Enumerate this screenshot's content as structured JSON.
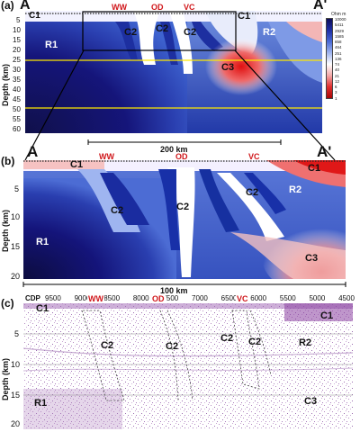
{
  "panel_a": {
    "letter": "(a)",
    "end_left": "A",
    "end_right": "A'",
    "markers": [
      "WW",
      "OD",
      "VC"
    ],
    "zones": [
      "C1",
      "C2",
      "C2",
      "C2",
      "C1",
      "R1",
      "R2",
      "C3"
    ],
    "y_ticks": [
      "5",
      "10",
      "15",
      "20",
      "25",
      "30",
      "35",
      "40",
      "45",
      "50",
      "55",
      "60"
    ],
    "y_label": "Depth (km)",
    "scale_bar": "200 km",
    "colorbar_title": "Ohm m",
    "colorbar_ticks": [
      "10000",
      "5411",
      "2929",
      "1585",
      "858",
      "464",
      "251",
      "136",
      "74",
      "40",
      "21",
      "12",
      "6",
      "3",
      "1"
    ]
  },
  "panel_b": {
    "letter": "(b)",
    "end_left": "A",
    "end_right": "A'",
    "markers": [
      "WW",
      "OD",
      "VC"
    ],
    "zones": [
      "C1",
      "C1",
      "C2",
      "C2",
      "C2",
      "R2",
      "R1",
      "C3"
    ],
    "y_ticks": [
      "5",
      "10",
      "15",
      "20"
    ],
    "y_label": "Depth (km)",
    "scale_bar": "100 km"
  },
  "panel_c": {
    "letter": "(c)",
    "cdp_label": "CDP",
    "cdp_ticks": [
      "9500",
      "9000",
      "8500",
      "8000",
      "7500",
      "7000",
      "6500",
      "6000",
      "5500",
      "5000",
      "4500"
    ],
    "markers": [
      "WW",
      "OD",
      "VC"
    ],
    "zones": [
      "C1",
      "C1",
      "C2",
      "C2",
      "C2",
      "C2",
      "R2",
      "R1",
      "C3"
    ],
    "y_ticks": [
      "5",
      "10",
      "15",
      "20"
    ],
    "y_label": "Depth (km)"
  }
}
